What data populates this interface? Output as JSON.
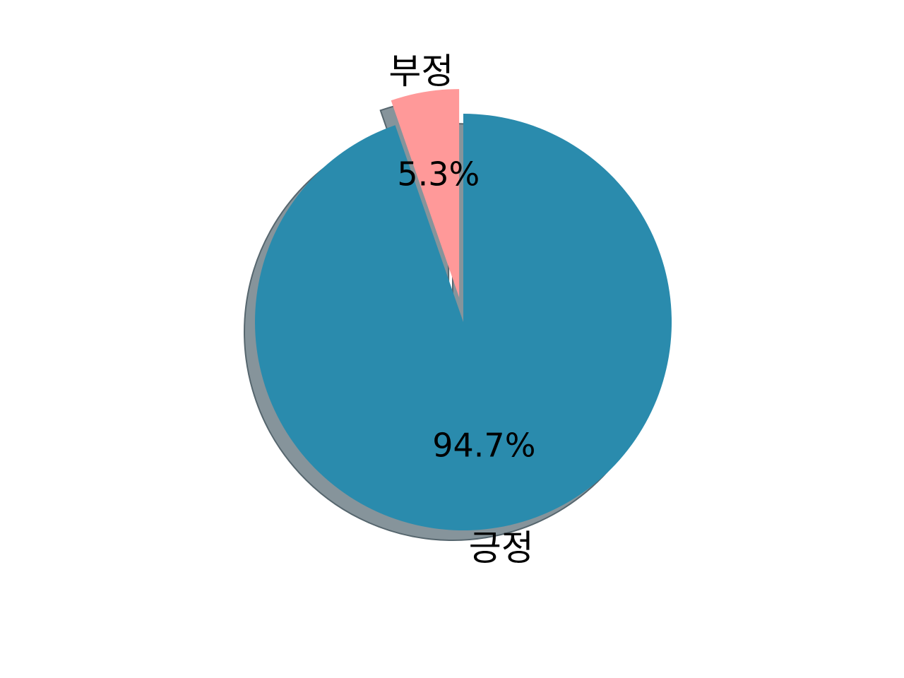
{
  "chart_data": {
    "type": "pie",
    "title": "",
    "start_angle_deg": 90,
    "counterclock": false,
    "shadow": true,
    "slices": [
      {
        "label": "긍정",
        "value": 94.7,
        "pct_label": "94.7%",
        "color": "#2a8bad",
        "explode": 0.0
      },
      {
        "label": "부정",
        "value": 5.3,
        "pct_label": "5.3%",
        "color": "#ff9999",
        "explode": 0.12
      }
    ],
    "shadow_colors": {
      "fill": "#86949b",
      "stroke": "#56666e"
    }
  }
}
